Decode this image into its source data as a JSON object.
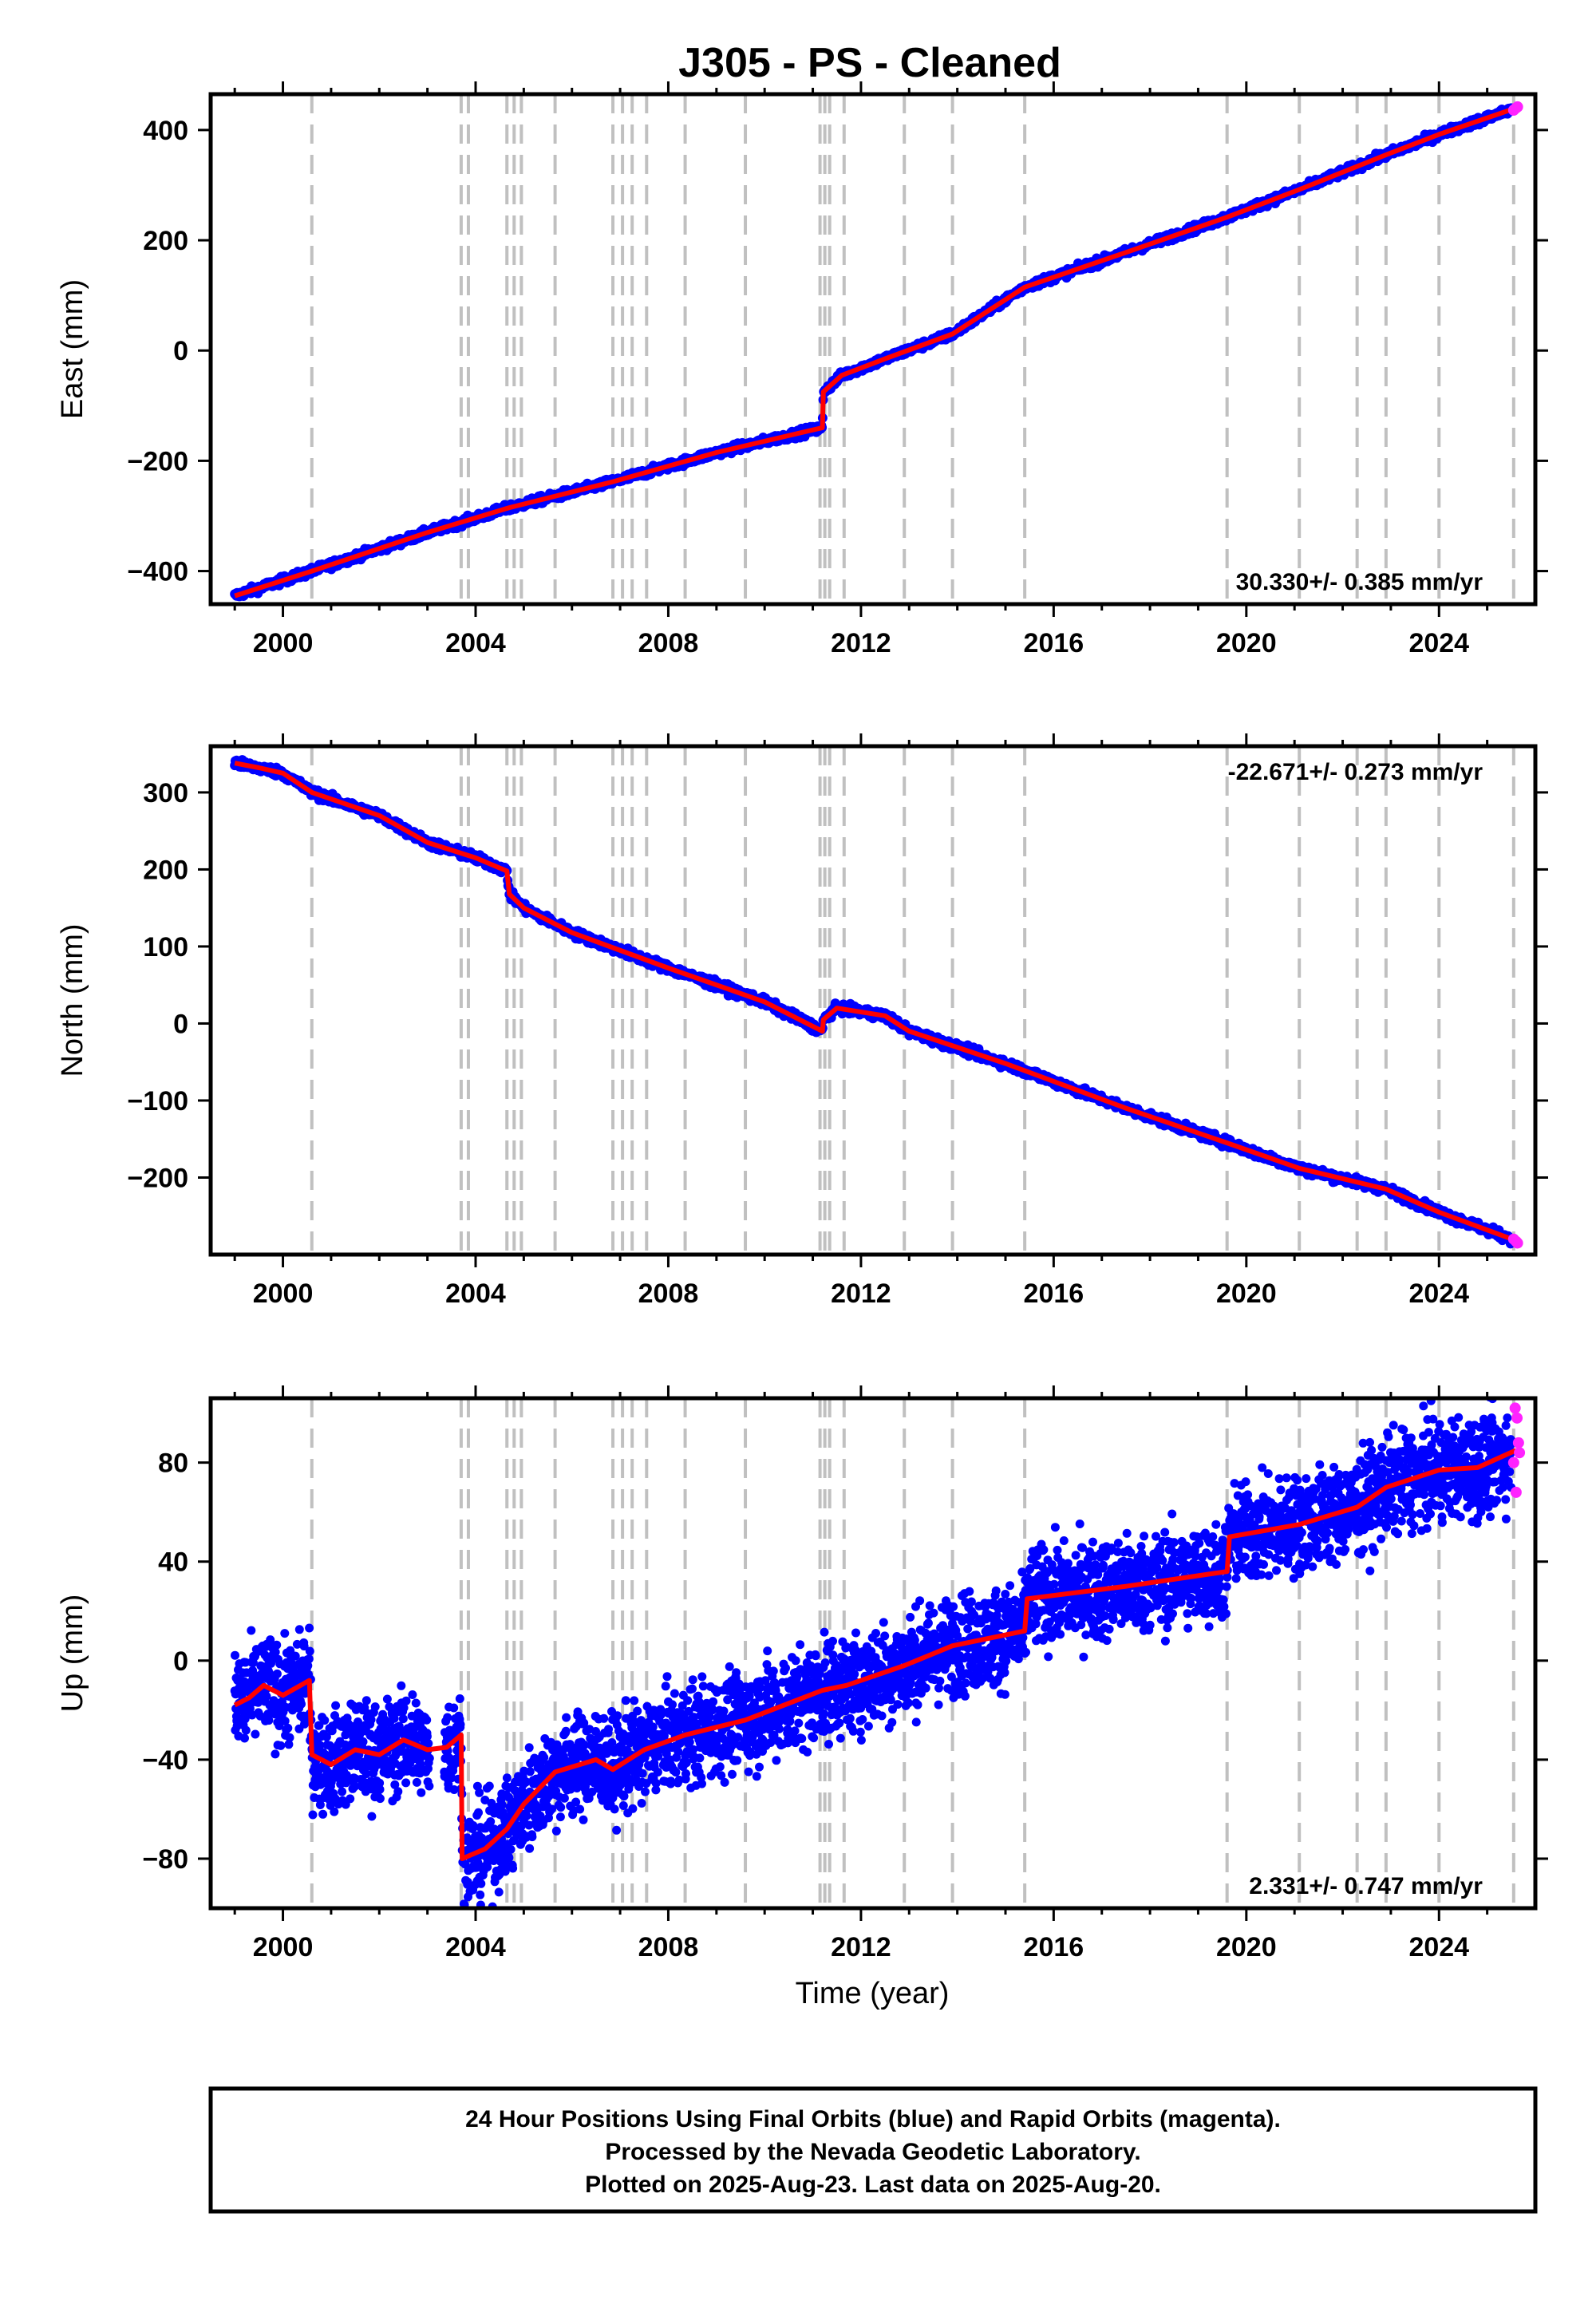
{
  "chart_data": {
    "type": "scatter",
    "title": "J305  - PS - Cleaned",
    "xlabel": "Time (year)",
    "xlim": [
      1998.5,
      2026.0
    ],
    "xticks": [
      2000,
      2004,
      2008,
      2012,
      2016,
      2020,
      2024
    ],
    "event_lines": [
      2000.6,
      2003.7,
      2003.85,
      2004.65,
      2004.8,
      2004.95,
      2005.65,
      2006.85,
      2007.05,
      2007.25,
      2007.55,
      2008.35,
      2009.6,
      2011.15,
      2011.25,
      2011.35,
      2011.65,
      2012.9,
      2013.9,
      2015.4,
      2019.6,
      2021.1,
      2022.3,
      2022.9,
      2024.0,
      2025.55
    ],
    "series_styles": {
      "daily_final_orbits": "#0000ff",
      "daily_rapid_orbits": "#ff22ff",
      "model": "#ff0000",
      "event_lines": "#c0c0c0"
    },
    "panels": [
      {
        "ylabel": "East (mm)",
        "ylim": [
          -460,
          465
        ],
        "yticks": [
          -400,
          -200,
          0,
          200,
          400
        ],
        "rate_label": "30.330+/- 0.385 mm/yr",
        "rate_position": "bottom-right",
        "model": {
          "x": [
            1999.0,
            2000.6,
            2003.0,
            2004.7,
            2006.85,
            2009.0,
            2011.2,
            2011.22,
            2011.6,
            2012.5,
            2013.9,
            2015.4,
            2017.5,
            2019.6,
            2021.1,
            2022.9,
            2024.0,
            2025.6
          ],
          "y": [
            -445,
            -400,
            -330,
            -285,
            -238,
            -185,
            -140,
            -75,
            -45,
            -15,
            30,
            115,
            178,
            242,
            292,
            355,
            392,
            440
          ]
        },
        "rapid_points": {
          "x": [
            2025.55,
            2025.6,
            2025.63
          ],
          "y": [
            436,
            440,
            442
          ]
        },
        "scatter_spread": 5
      },
      {
        "ylabel": "North (mm)",
        "ylim": [
          -300,
          360
        ],
        "yticks": [
          -200,
          -100,
          0,
          100,
          200,
          300
        ],
        "rate_label": "-22.671+/- 0.273 mm/yr",
        "rate_position": "top-right",
        "model": {
          "x": [
            1999.0,
            1999.5,
            2000.0,
            2000.6,
            2002.0,
            2003.0,
            2004.0,
            2004.65,
            2004.7,
            2005.0,
            2006.0,
            2008.0,
            2010.0,
            2011.2,
            2011.22,
            2011.5,
            2012.5,
            2013.0,
            2015.0,
            2017.5,
            2019.6,
            2021.1,
            2022.9,
            2024.0,
            2025.6
          ],
          "y": [
            338,
            332,
            325,
            300,
            270,
            235,
            215,
            198,
            168,
            150,
            118,
            72,
            28,
            -10,
            5,
            20,
            10,
            -10,
            -52,
            -110,
            -155,
            -188,
            -215,
            -245,
            -282
          ]
        },
        "rapid_points": {
          "x": [
            2025.55,
            2025.6,
            2025.63
          ],
          "y": [
            -280,
            -283,
            -285
          ]
        },
        "scatter_spread": 4
      },
      {
        "ylabel": "Up (mm)",
        "ylim": [
          -100,
          106
        ],
        "yticks": [
          -80,
          -40,
          0,
          40,
          80
        ],
        "rate_label": "2.331+/- 0.747 mm/yr",
        "rate_position": "bottom-right",
        "model": {
          "x": [
            1999.0,
            1999.3,
            1999.6,
            2000.0,
            2000.55,
            2000.6,
            2001.0,
            2001.5,
            2002.0,
            2002.5,
            2003.0,
            2003.4,
            2003.7,
            2003.72,
            2004.2,
            2004.65,
            2005.0,
            2005.65,
            2006.5,
            2006.85,
            2007.5,
            2008.35,
            2009.6,
            2011.2,
            2011.7,
            2012.9,
            2013.9,
            2015.4,
            2015.45,
            2017.5,
            2019.6,
            2019.65,
            2021.1,
            2022.3,
            2022.9,
            2024.0,
            2024.8,
            2025.6
          ],
          "y": [
            -18,
            -15,
            -10,
            -14,
            -8,
            -38,
            -42,
            -36,
            -38,
            -32,
            -36,
            -35,
            -30,
            -80,
            -76,
            -68,
            -58,
            -45,
            -40,
            -44,
            -36,
            -30,
            -24,
            -12,
            -10,
            -2,
            6,
            12,
            25,
            30,
            36,
            50,
            55,
            62,
            70,
            77,
            78,
            85
          ]
        },
        "rapid_points": {
          "x": [
            2025.55,
            2025.58,
            2025.6,
            2025.62,
            2025.65,
            2025.67
          ],
          "y": [
            80,
            102,
            68,
            98,
            88,
            84
          ]
        },
        "scatter_spread": 14
      }
    ],
    "footer": [
      "24 Hour Positions Using Final Orbits (blue) and Rapid Orbits (magenta).",
      "Processed by the Nevada Geodetic Laboratory.",
      "Plotted on 2025-Aug-23. Last data on 2025-Aug-20."
    ]
  }
}
